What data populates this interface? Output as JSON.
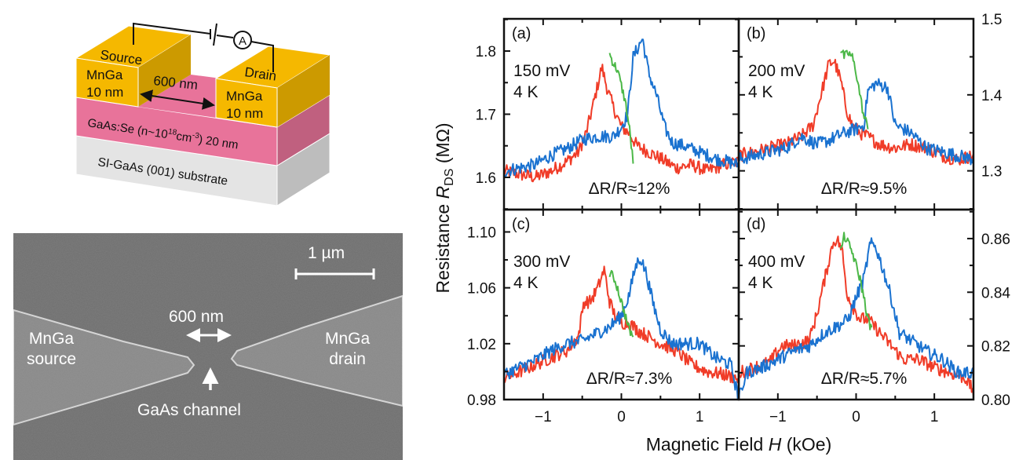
{
  "schematic": {
    "source_label": "Source",
    "drain_label": "Drain",
    "source_layer": [
      "MnGa",
      "10 nm"
    ],
    "drain_layer": [
      "MnGa",
      "10 nm"
    ],
    "gap_label": "600 nm",
    "channel_layer": "GaAs:Se (n~10",
    "channel_exp": "18",
    "channel_unit": "cm",
    "channel_unit_exp": "-3",
    "channel_thickness": ") 20 nm",
    "substrate_label": "SI-GaAs (001) substrate",
    "ammeter_symbol": "A",
    "colors": {
      "mnga": "#f5b800",
      "mnga_side": "#cc9a00",
      "gaas": "#e8739a",
      "gaas_side": "#c0607f",
      "substrate": "#e3e3e3",
      "substrate_side": "#bdbdbd"
    }
  },
  "sem": {
    "scale_bar_label": "1 µm",
    "gap_label": "600 nm",
    "source_label": [
      "MnGa",
      "source"
    ],
    "drain_label": [
      "MnGa",
      "drain"
    ],
    "channel_label": "GaAs channel"
  },
  "chart_data": {
    "type": "line",
    "xlabel": "Magnetic Field H (kOe)",
    "ylabel": "Resistance R_DS (MΩ)",
    "xlim": [
      -1.5,
      1.5
    ],
    "x_ticks": [
      -1,
      0,
      1
    ],
    "x_tick_labels": [
      "−1",
      "0",
      "1"
    ],
    "series_colors": {
      "sweep_down": "#f03c28",
      "sweep_up": "#1a72d0",
      "minor_loop": "#4cb848"
    },
    "panels": [
      {
        "id": "a",
        "label": "(a)",
        "bias": "150 mV",
        "temperature": "4 K",
        "mr_text": "ΔR/R≈12%",
        "y_axis_side": "left",
        "ylim": [
          1.549,
          1.851
        ],
        "y_ticks": [
          1.6,
          1.7,
          1.8
        ],
        "y_tick_labels": [
          "1.6",
          "1.7",
          "1.8"
        ],
        "series": [
          {
            "name": "sweep_down",
            "x": [
              -1.5,
              -1.3,
              -1.1,
              -0.9,
              -0.7,
              -0.55,
              -0.45,
              -0.35,
              -0.25,
              -0.18,
              -0.1,
              0.0,
              0.1,
              0.2,
              0.35,
              0.5,
              0.7,
              0.9,
              1.1,
              1.3,
              1.5
            ],
            "y": [
              1.61,
              1.605,
              1.6,
              1.61,
              1.625,
              1.64,
              1.67,
              1.72,
              1.775,
              1.74,
              1.71,
              1.68,
              1.67,
              1.65,
              1.64,
              1.63,
              1.615,
              1.62,
              1.61,
              1.62,
              1.625
            ]
          },
          {
            "name": "sweep_up",
            "x": [
              -1.5,
              -1.3,
              -1.1,
              -0.9,
              -0.7,
              -0.5,
              -0.3,
              -0.1,
              0.0,
              0.08,
              0.15,
              0.27,
              0.35,
              0.45,
              0.55,
              0.65,
              0.8,
              1.0,
              1.2,
              1.5
            ],
            "y": [
              1.61,
              1.615,
              1.62,
              1.635,
              1.645,
              1.66,
              1.665,
              1.665,
              1.68,
              1.7,
              1.79,
              1.82,
              1.765,
              1.73,
              1.68,
              1.655,
              1.65,
              1.64,
              1.63,
              1.62
            ]
          },
          {
            "name": "minor_loop",
            "x": [
              -0.15,
              -0.1,
              -0.05,
              0.0,
              0.05,
              0.1,
              0.15
            ],
            "y": [
              1.795,
              1.78,
              1.77,
              1.745,
              1.72,
              1.68,
              1.625
            ]
          }
        ]
      },
      {
        "id": "b",
        "label": "(b)",
        "bias": "200 mV",
        "temperature": "4 K",
        "mr_text": "ΔR/R≈9.5%",
        "y_axis_side": "right",
        "ylim": [
          1.249,
          1.5
        ],
        "y_ticks": [
          1.3,
          1.4,
          1.5
        ],
        "y_tick_labels": [
          "1.3",
          "1.4",
          "1.5"
        ],
        "series": [
          {
            "name": "sweep_down",
            "x": [
              -1.5,
              -1.3,
              -1.1,
              -0.9,
              -0.7,
              -0.55,
              -0.45,
              -0.35,
              -0.28,
              -0.2,
              -0.12,
              -0.05,
              0.05,
              0.15,
              0.3,
              0.5,
              0.7,
              0.9,
              1.1,
              1.3,
              1.5
            ],
            "y": [
              1.32,
              1.325,
              1.33,
              1.335,
              1.345,
              1.36,
              1.4,
              1.44,
              1.445,
              1.42,
              1.38,
              1.36,
              1.35,
              1.345,
              1.335,
              1.33,
              1.335,
              1.33,
              1.32,
              1.315,
              1.32
            ]
          },
          {
            "name": "sweep_up",
            "x": [
              -1.5,
              -1.3,
              -1.1,
              -0.9,
              -0.7,
              -0.5,
              -0.35,
              -0.15,
              0.0,
              0.1,
              0.15,
              0.25,
              0.4,
              0.5,
              0.6,
              0.7,
              0.9,
              1.1,
              1.3,
              1.5
            ],
            "y": [
              1.315,
              1.32,
              1.325,
              1.33,
              1.345,
              1.335,
              1.34,
              1.35,
              1.355,
              1.36,
              1.405,
              1.415,
              1.41,
              1.36,
              1.355,
              1.35,
              1.33,
              1.325,
              1.32,
              1.315
            ]
          },
          {
            "name": "minor_loop",
            "x": [
              -0.2,
              -0.15,
              -0.1,
              -0.05,
              0.0,
              0.05,
              0.1,
              0.15
            ],
            "y": [
              1.46,
              1.45,
              1.455,
              1.45,
              1.43,
              1.4,
              1.37,
              1.36
            ]
          }
        ]
      },
      {
        "id": "c",
        "label": "(c)",
        "bias": "300 mV",
        "temperature": "4 K",
        "mr_text": "ΔR/R≈7.3%",
        "y_axis_side": "left",
        "ylim": [
          0.98,
          1.116
        ],
        "y_ticks": [
          0.98,
          1.02,
          1.06,
          1.1
        ],
        "y_tick_labels": [
          "0.98",
          "1.02",
          "1.06",
          "1.10"
        ],
        "series": [
          {
            "name": "sweep_down",
            "x": [
              -1.5,
              -1.3,
              -1.1,
              -0.9,
              -0.7,
              -0.55,
              -0.48,
              -0.4,
              -0.3,
              -0.22,
              -0.15,
              -0.08,
              0.0,
              0.1,
              0.2,
              0.35,
              0.5,
              0.7,
              0.9,
              1.1,
              1.3,
              1.5
            ],
            "y": [
              0.995,
              1.0,
              1.005,
              1.01,
              1.015,
              1.025,
              1.05,
              1.05,
              1.06,
              1.073,
              1.05,
              1.04,
              1.035,
              1.035,
              1.03,
              1.025,
              1.02,
              1.015,
              1.005,
              1.0,
              0.998,
              0.995
            ]
          },
          {
            "name": "sweep_up",
            "x": [
              -1.5,
              -1.3,
              -1.1,
              -0.9,
              -0.7,
              -0.5,
              -0.3,
              -0.15,
              0.0,
              0.1,
              0.18,
              0.24,
              0.32,
              0.4,
              0.5,
              0.65,
              0.8,
              1.0,
              1.2,
              1.4,
              1.5
            ],
            "y": [
              0.998,
              1.003,
              1.008,
              1.015,
              1.02,
              1.022,
              1.028,
              1.032,
              1.04,
              1.055,
              1.075,
              1.082,
              1.07,
              1.05,
              1.03,
              1.02,
              1.02,
              1.02,
              1.01,
              1.005,
              0.98
            ]
          },
          {
            "name": "minor_loop",
            "x": [
              -0.15,
              -0.1,
              -0.05,
              0.0,
              0.05,
              0.1,
              0.15
            ],
            "y": [
              1.07,
              1.068,
              1.06,
              1.05,
              1.04,
              1.03,
              1.025
            ]
          }
        ]
      },
      {
        "id": "d",
        "label": "(d)",
        "bias": "400 mV",
        "temperature": "4 K",
        "mr_text": "ΔR/R≈5.7%",
        "y_axis_side": "right",
        "ylim": [
          0.8,
          0.8708
        ],
        "y_ticks": [
          0.8,
          0.82,
          0.84,
          0.86
        ],
        "y_tick_labels": [
          "0.80",
          "0.82",
          "0.84",
          "0.86"
        ],
        "series": [
          {
            "name": "sweep_down",
            "x": [
              -1.5,
              -1.3,
              -1.1,
              -0.95,
              -0.8,
              -0.6,
              -0.5,
              -0.4,
              -0.3,
              -0.25,
              -0.18,
              -0.12,
              -0.05,
              0.05,
              0.15,
              0.3,
              0.45,
              0.6,
              0.8,
              1.0,
              1.2,
              1.4,
              1.5
            ],
            "y": [
              0.81,
              0.812,
              0.814,
              0.82,
              0.82,
              0.822,
              0.832,
              0.845,
              0.858,
              0.86,
              0.856,
              0.84,
              0.835,
              0.83,
              0.83,
              0.825,
              0.82,
              0.815,
              0.815,
              0.812,
              0.81,
              0.808,
              0.803
            ]
          },
          {
            "name": "sweep_up",
            "x": [
              -1.5,
              -1.4,
              -1.2,
              -1.0,
              -0.8,
              -0.6,
              -0.4,
              -0.2,
              -0.1,
              0.0,
              0.1,
              0.18,
              0.25,
              0.35,
              0.45,
              0.55,
              0.7,
              0.9,
              1.1,
              1.3,
              1.5
            ],
            "y": [
              0.8,
              0.81,
              0.812,
              0.815,
              0.818,
              0.82,
              0.825,
              0.828,
              0.83,
              0.838,
              0.845,
              0.858,
              0.857,
              0.848,
              0.838,
              0.825,
              0.822,
              0.818,
              0.815,
              0.81,
              0.81
            ]
          },
          {
            "name": "minor_loop",
            "x": [
              -0.2,
              -0.15,
              -0.1,
              -0.05,
              0.0,
              0.05,
              0.1,
              0.15,
              0.2
            ],
            "y": [
              0.855,
              0.861,
              0.858,
              0.855,
              0.85,
              0.845,
              0.838,
              0.83,
              0.826
            ]
          }
        ]
      }
    ]
  }
}
